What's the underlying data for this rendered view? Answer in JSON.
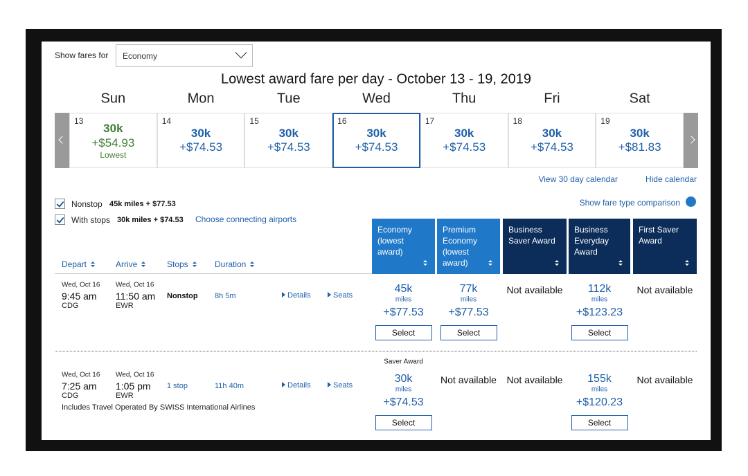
{
  "filter": {
    "label": "Show fares for",
    "selected": "Economy"
  },
  "calendar": {
    "title": "Lowest award fare per day - October 13 - 19, 2019",
    "weekdays": [
      "Sun",
      "Mon",
      "Tue",
      "Wed",
      "Thu",
      "Fri",
      "Sat"
    ],
    "days": [
      {
        "date": "13",
        "miles": "30k",
        "price": "+$54.93",
        "note": "Lowest"
      },
      {
        "date": "14",
        "miles": "30k",
        "price": "+$74.53"
      },
      {
        "date": "15",
        "miles": "30k",
        "price": "+$74.53"
      },
      {
        "date": "16",
        "miles": "30k",
        "price": "+$74.53"
      },
      {
        "date": "17",
        "miles": "30k",
        "price": "+$74.53"
      },
      {
        "date": "18",
        "miles": "30k",
        "price": "+$74.53"
      },
      {
        "date": "19",
        "miles": "30k",
        "price": "+$81.83"
      }
    ],
    "links": [
      "View 30 day calendar",
      "Hide calendar"
    ]
  },
  "options": {
    "nonstop": {
      "label": "Nonstop",
      "fare": "45k miles + $77.53"
    },
    "with_stops": {
      "label": "With stops",
      "fare": "30k miles + $74.53"
    },
    "connecting": "Choose connecting airports",
    "comparison": "Show fare type comparison"
  },
  "sort_headers": [
    "Depart",
    "Arrive",
    "Stops",
    "Duration"
  ],
  "fare_columns": [
    "Economy (lowest award)",
    "Premium Economy (lowest award)",
    "Business Saver Award",
    "Business Everyday Award",
    "First Saver Award"
  ],
  "flights": [
    {
      "depart": {
        "date": "Wed, Oct 16",
        "time": "9:45 am",
        "airport": "CDG"
      },
      "arrive": {
        "date": "Wed, Oct 16",
        "time": "11:50 am",
        "airport": "EWR"
      },
      "stops": "Nonstop",
      "duration": "8h 5m",
      "details": "Details",
      "seats": "Seats",
      "fares": [
        {
          "miles": "45k",
          "unit": "miles",
          "price": "+$77.53",
          "button": "Select"
        },
        {
          "miles": "77k",
          "unit": "miles",
          "price": "+$77.53",
          "button": "Select"
        },
        {
          "status": "Not available"
        },
        {
          "miles": "112k",
          "unit": "miles",
          "price": "+$123.23",
          "button": "Select"
        },
        {
          "status": "Not available"
        }
      ]
    },
    {
      "depart": {
        "date": "Wed, Oct 16",
        "time": "7:25 am",
        "airport": "CDG"
      },
      "arrive": {
        "date": "Wed, Oct 16",
        "time": "1:05 pm",
        "airport": "EWR"
      },
      "stops": "1 stop",
      "duration": "11h 40m",
      "details": "Details",
      "seats": "Seats",
      "note": "Includes Travel Operated By SWISS International Airlines",
      "fares": [
        {
          "label": "Saver Award",
          "miles": "30k",
          "unit": "miles",
          "price": "+$74.53",
          "button": "Select"
        },
        {
          "status": "Not available"
        },
        {
          "status": "Not available"
        },
        {
          "miles": "155k",
          "unit": "miles",
          "price": "+$120.23",
          "button": "Select"
        },
        {
          "status": "Not available"
        }
      ]
    }
  ]
}
